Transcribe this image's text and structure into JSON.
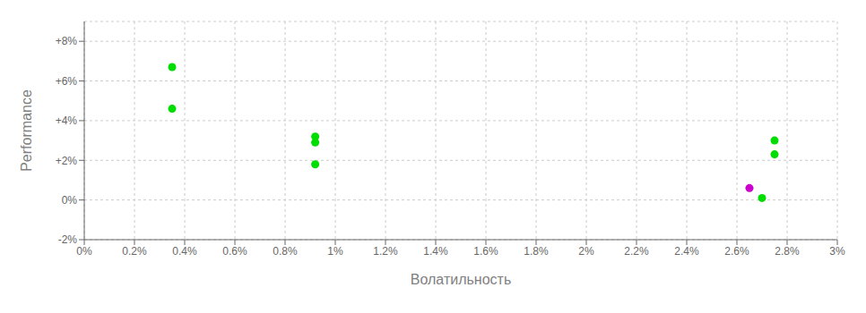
{
  "chart_data": {
    "type": "scatter",
    "xlabel": "Волатильность",
    "ylabel": "Performance",
    "xlim": [
      0.0,
      0.03
    ],
    "ylim": [
      -0.02,
      0.09
    ],
    "xticks": [
      {
        "value": 0.0,
        "label": "0%"
      },
      {
        "value": 0.002,
        "label": "0.2%"
      },
      {
        "value": 0.004,
        "label": "0.4%"
      },
      {
        "value": 0.006,
        "label": "0.6%"
      },
      {
        "value": 0.008,
        "label": "0.8%"
      },
      {
        "value": 0.01,
        "label": "1%"
      },
      {
        "value": 0.012,
        "label": "1.2%"
      },
      {
        "value": 0.014,
        "label": "1.4%"
      },
      {
        "value": 0.016,
        "label": "1.6%"
      },
      {
        "value": 0.018,
        "label": "1.8%"
      },
      {
        "value": 0.02,
        "label": "2%"
      },
      {
        "value": 0.022,
        "label": "2.2%"
      },
      {
        "value": 0.024,
        "label": "2.4%"
      },
      {
        "value": 0.026,
        "label": "2.6%"
      },
      {
        "value": 0.028,
        "label": "2.8%"
      },
      {
        "value": 0.03,
        "label": "3%"
      }
    ],
    "yticks": [
      {
        "value": -0.02,
        "label": "-2%"
      },
      {
        "value": 0.0,
        "label": "0%"
      },
      {
        "value": 0.02,
        "label": "+2%"
      },
      {
        "value": 0.04,
        "label": "+4%"
      },
      {
        "value": 0.06,
        "label": "+6%"
      },
      {
        "value": 0.08,
        "label": "+8%"
      }
    ],
    "grid": true,
    "series": [
      {
        "color": "#00dd00",
        "x": [
          0.0035,
          0.0035,
          0.0092,
          0.0092,
          0.0092,
          0.0275,
          0.0275,
          0.027
        ],
        "values": [
          0.067,
          0.046,
          0.032,
          0.029,
          0.018,
          0.03,
          0.023,
          0.001
        ]
      },
      {
        "color": "#cc00cc",
        "x": [
          0.0265
        ],
        "values": [
          0.006
        ]
      }
    ]
  }
}
